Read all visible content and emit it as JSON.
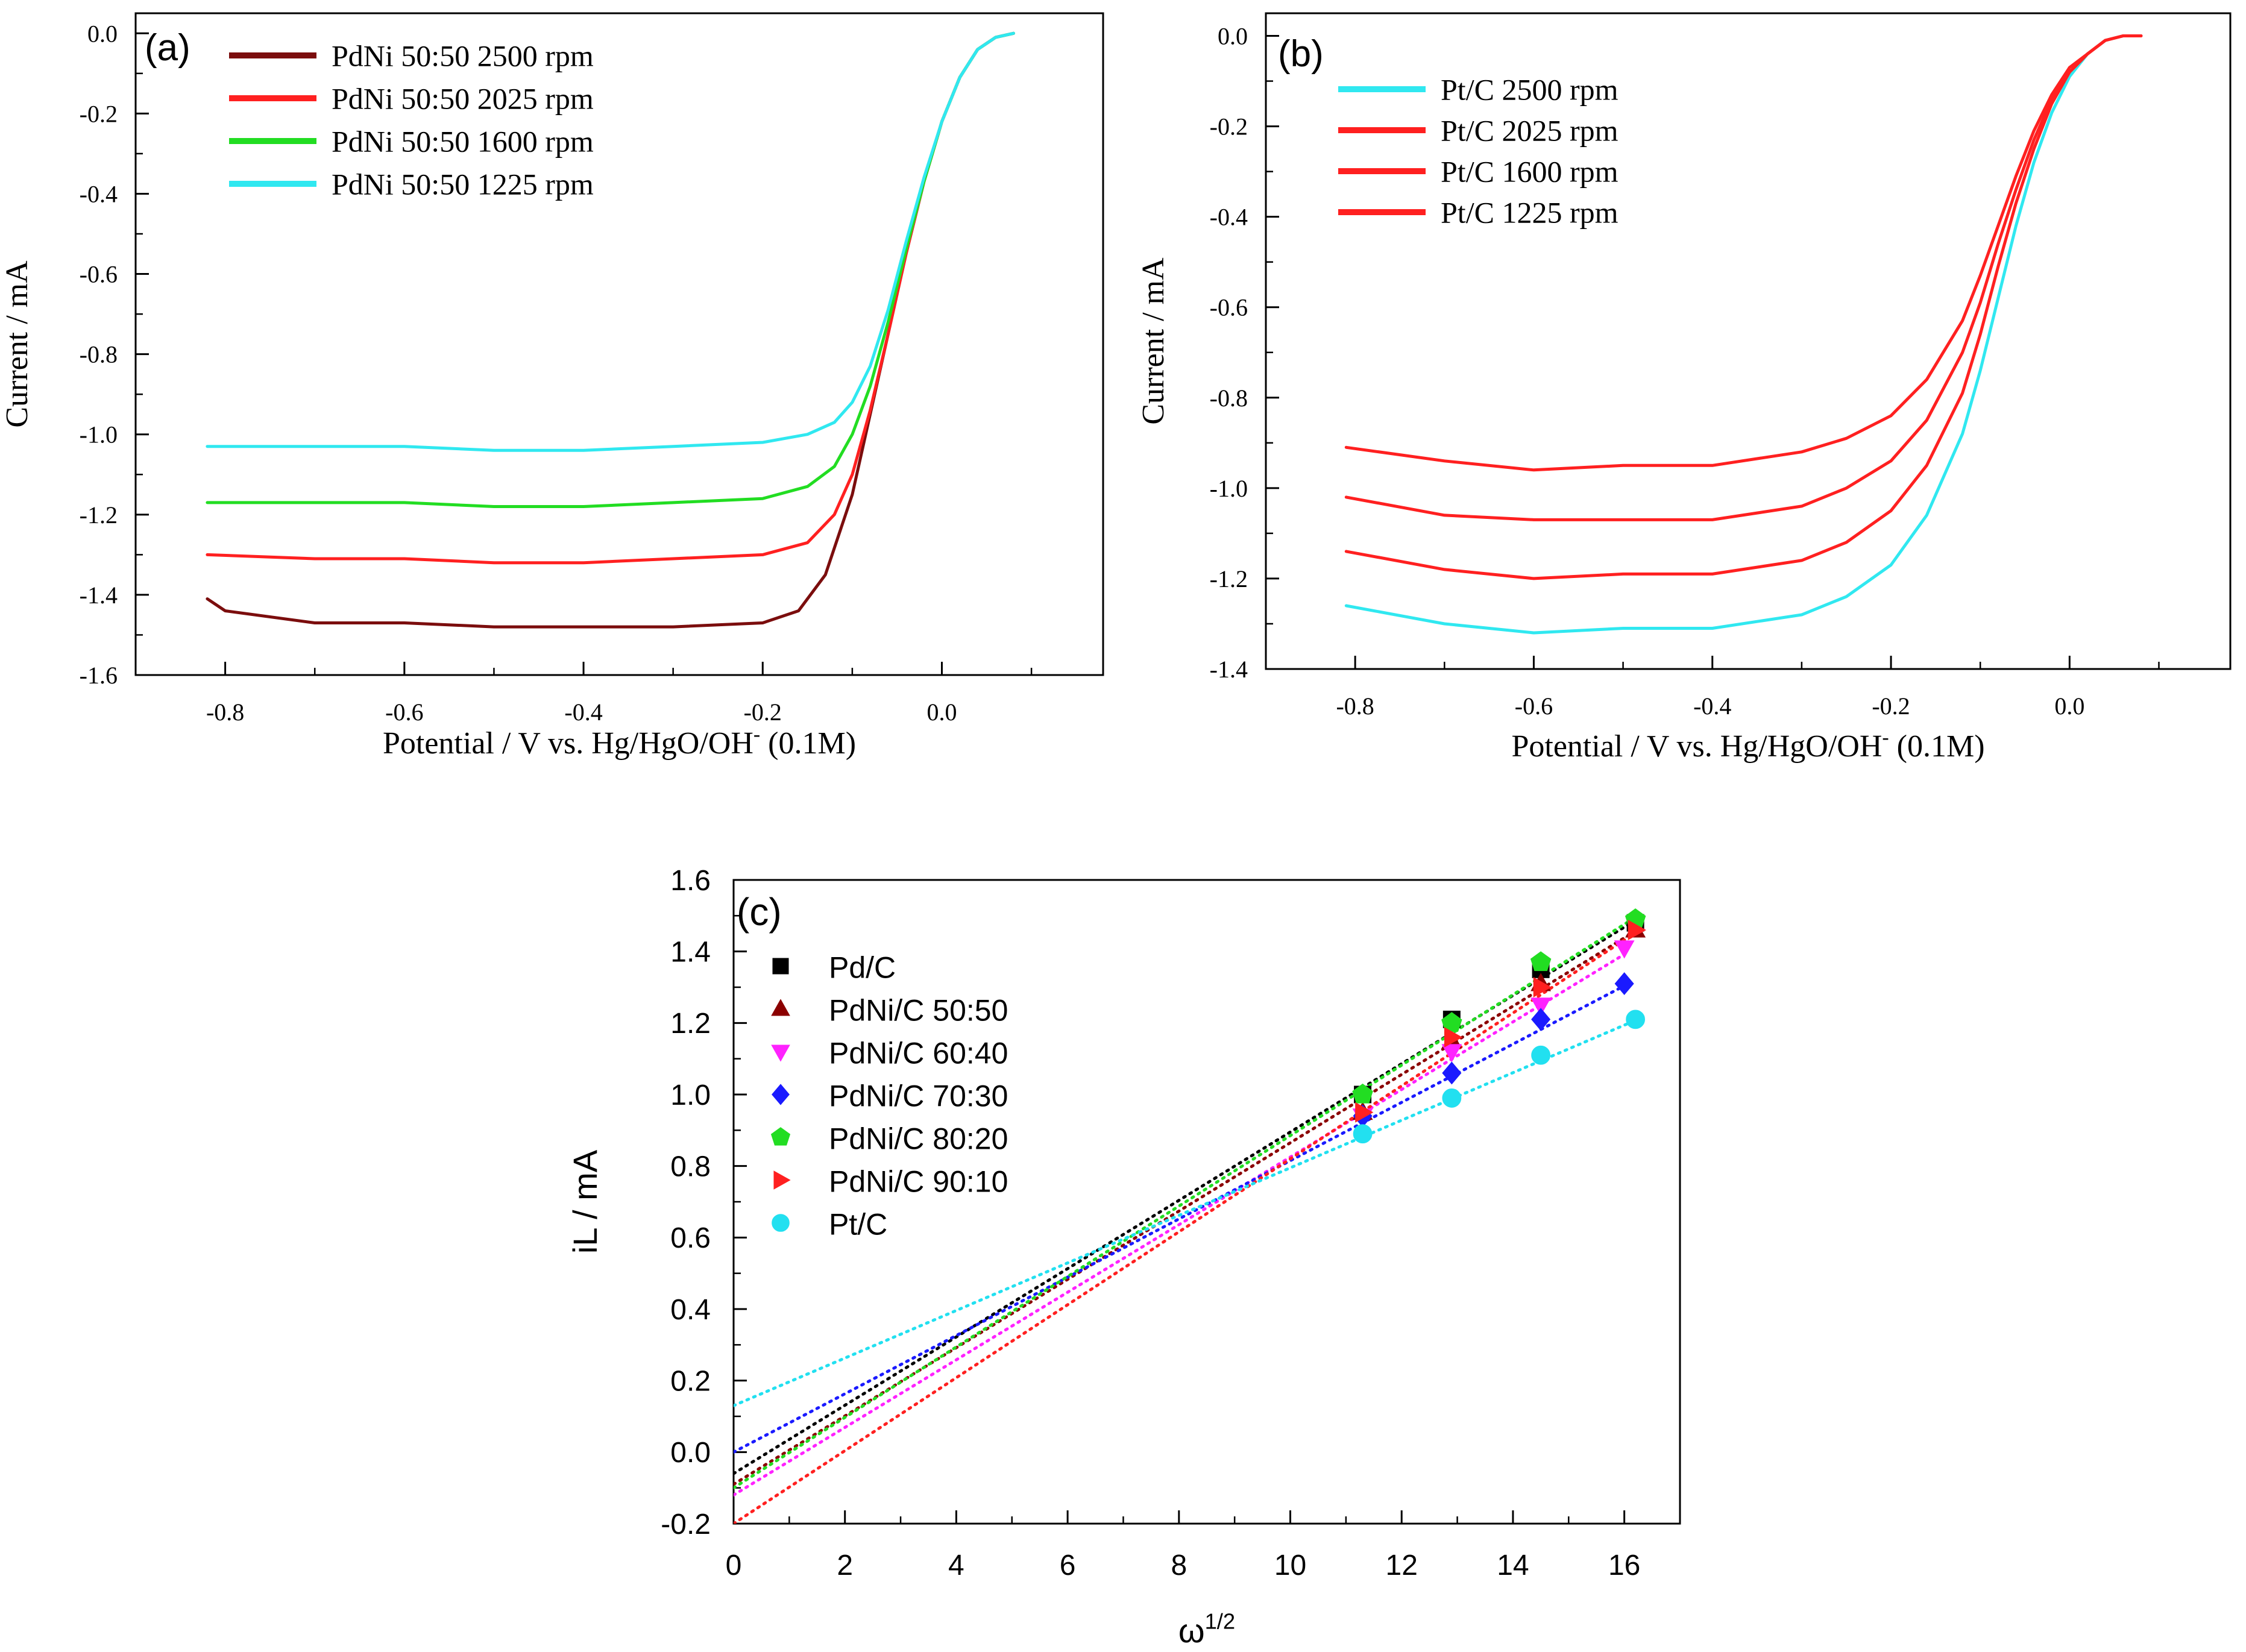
{
  "chart_data": [
    {
      "type": "line",
      "panel_label": "(a)",
      "xlabel_main": "Potential / V vs. Hg/HgO/OH",
      "xlabel_sup": "-",
      "xlabel_tail": " (0.1M)",
      "ylabel": "Current / mA",
      "xlim": [
        -0.9,
        0.18
      ],
      "ylim": [
        -1.6,
        0.05
      ],
      "xticks": [
        -0.8,
        -0.6,
        -0.4,
        -0.2,
        0.0
      ],
      "xtick_labels": [
        "-0.8",
        "-0.6",
        "-0.4",
        "-0.2",
        "0.0"
      ],
      "yticks": [
        0.0,
        -0.2,
        -0.4,
        -0.6,
        -0.8,
        -1.0,
        -1.2,
        -1.4,
        -1.6
      ],
      "ytick_labels": [
        "0.0",
        "-0.2",
        "-0.4",
        "-0.6",
        "-0.8",
        "-1.0",
        "-1.2",
        "-1.4",
        "-1.6"
      ],
      "legend_position": "top-left",
      "series": [
        {
          "name": "PdNi 50:50 2500 rpm",
          "color": "#7b0d0d",
          "x": [
            -0.82,
            -0.8,
            -0.7,
            -0.6,
            -0.5,
            -0.4,
            -0.3,
            -0.2,
            -0.16,
            -0.13,
            -0.1,
            -0.08,
            -0.06,
            -0.04,
            -0.02,
            0.0,
            0.02,
            0.04,
            0.06,
            0.08
          ],
          "y": [
            -1.41,
            -1.44,
            -1.47,
            -1.47,
            -1.48,
            -1.48,
            -1.48,
            -1.47,
            -1.44,
            -1.35,
            -1.15,
            -0.95,
            -0.75,
            -0.55,
            -0.37,
            -0.22,
            -0.11,
            -0.04,
            -0.01,
            0.0
          ]
        },
        {
          "name": "PdNi 50:50 2025 rpm",
          "color": "#ff2020",
          "x": [
            -0.82,
            -0.7,
            -0.6,
            -0.5,
            -0.4,
            -0.3,
            -0.2,
            -0.15,
            -0.12,
            -0.1,
            -0.08,
            -0.06,
            -0.04,
            -0.02,
            0.0,
            0.02,
            0.04,
            0.06,
            0.08
          ],
          "y": [
            -1.3,
            -1.31,
            -1.31,
            -1.32,
            -1.32,
            -1.31,
            -1.3,
            -1.27,
            -1.2,
            -1.1,
            -0.94,
            -0.75,
            -0.55,
            -0.37,
            -0.22,
            -0.11,
            -0.04,
            -0.01,
            0.0
          ]
        },
        {
          "name": "PdNi 50:50 1600 rpm",
          "color": "#22dd22",
          "x": [
            -0.82,
            -0.7,
            -0.6,
            -0.5,
            -0.4,
            -0.3,
            -0.2,
            -0.15,
            -0.12,
            -0.1,
            -0.08,
            -0.06,
            -0.04,
            -0.02,
            0.0,
            0.02,
            0.04,
            0.06,
            0.08
          ],
          "y": [
            -1.17,
            -1.17,
            -1.17,
            -1.18,
            -1.18,
            -1.17,
            -1.16,
            -1.13,
            -1.08,
            -1.0,
            -0.88,
            -0.72,
            -0.54,
            -0.37,
            -0.22,
            -0.11,
            -0.04,
            -0.01,
            0.0
          ]
        },
        {
          "name": "PdNi 50:50 1225 rpm",
          "color": "#30e8f0",
          "x": [
            -0.82,
            -0.7,
            -0.6,
            -0.5,
            -0.4,
            -0.3,
            -0.2,
            -0.15,
            -0.12,
            -0.1,
            -0.08,
            -0.06,
            -0.04,
            -0.02,
            0.0,
            0.02,
            0.04,
            0.06,
            0.08
          ],
          "y": [
            -1.03,
            -1.03,
            -1.03,
            -1.04,
            -1.04,
            -1.03,
            -1.02,
            -1.0,
            -0.97,
            -0.92,
            -0.83,
            -0.69,
            -0.52,
            -0.36,
            -0.22,
            -0.11,
            -0.04,
            -0.01,
            0.0
          ]
        }
      ]
    },
    {
      "type": "line",
      "panel_label": "(b)",
      "xlabel_main": "Potential / V vs. Hg/HgO/OH",
      "xlabel_sup": "-",
      "xlabel_tail": " (0.1M)",
      "ylabel": "Current / mA",
      "xlim": [
        -0.9,
        0.18
      ],
      "ylim": [
        -1.4,
        0.05
      ],
      "xticks": [
        -0.8,
        -0.6,
        -0.4,
        -0.2,
        0.0
      ],
      "xtick_labels": [
        "-0.8",
        "-0.6",
        "-0.4",
        "-0.2",
        "0.0"
      ],
      "yticks": [
        0.0,
        -0.2,
        -0.4,
        -0.6,
        -0.8,
        -1.0,
        -1.2,
        -1.4
      ],
      "ytick_labels": [
        "0.0",
        "-0.2",
        "-0.4",
        "-0.6",
        "-0.8",
        "-1.0",
        "-1.2",
        "-1.4"
      ],
      "legend_position": "top-left",
      "series": [
        {
          "name": "Pt/C 2500 rpm",
          "color": "#30e8f0",
          "x": [
            -0.81,
            -0.7,
            -0.6,
            -0.5,
            -0.4,
            -0.3,
            -0.25,
            -0.2,
            -0.16,
            -0.12,
            -0.1,
            -0.08,
            -0.06,
            -0.04,
            -0.02,
            0.0,
            0.02,
            0.04,
            0.06,
            0.08
          ],
          "y": [
            -1.26,
            -1.3,
            -1.32,
            -1.31,
            -1.31,
            -1.28,
            -1.24,
            -1.17,
            -1.06,
            -0.88,
            -0.74,
            -0.58,
            -0.42,
            -0.28,
            -0.17,
            -0.09,
            -0.04,
            -0.01,
            0.0,
            0.0
          ]
        },
        {
          "name": "Pt/C 2025 rpm",
          "color": "#ff2020",
          "x": [
            -0.81,
            -0.7,
            -0.6,
            -0.5,
            -0.4,
            -0.3,
            -0.25,
            -0.2,
            -0.16,
            -0.12,
            -0.1,
            -0.08,
            -0.06,
            -0.04,
            -0.02,
            0.0,
            0.02,
            0.04,
            0.06,
            0.08
          ],
          "y": [
            -1.14,
            -1.18,
            -1.2,
            -1.19,
            -1.19,
            -1.16,
            -1.12,
            -1.05,
            -0.95,
            -0.79,
            -0.66,
            -0.51,
            -0.37,
            -0.25,
            -0.15,
            -0.08,
            -0.04,
            -0.01,
            0.0,
            0.0
          ]
        },
        {
          "name": "Pt/C 1600 rpm",
          "color": "#ff2020",
          "x": [
            -0.81,
            -0.7,
            -0.6,
            -0.5,
            -0.4,
            -0.3,
            -0.25,
            -0.2,
            -0.16,
            -0.12,
            -0.1,
            -0.08,
            -0.06,
            -0.04,
            -0.02,
            0.0,
            0.02,
            0.04,
            0.06,
            0.08
          ],
          "y": [
            -1.02,
            -1.06,
            -1.07,
            -1.07,
            -1.07,
            -1.04,
            -1.0,
            -0.94,
            -0.85,
            -0.7,
            -0.59,
            -0.46,
            -0.34,
            -0.23,
            -0.14,
            -0.08,
            -0.04,
            -0.01,
            0.0,
            0.0
          ]
        },
        {
          "name": "Pt/C 1225 rpm",
          "color": "#ff2020",
          "x": [
            -0.81,
            -0.7,
            -0.6,
            -0.5,
            -0.4,
            -0.3,
            -0.25,
            -0.2,
            -0.16,
            -0.12,
            -0.1,
            -0.08,
            -0.06,
            -0.04,
            -0.02,
            0.0,
            0.02,
            0.04,
            0.06,
            0.08
          ],
          "y": [
            -0.91,
            -0.94,
            -0.96,
            -0.95,
            -0.95,
            -0.92,
            -0.89,
            -0.84,
            -0.76,
            -0.63,
            -0.53,
            -0.42,
            -0.31,
            -0.21,
            -0.13,
            -0.07,
            -0.04,
            -0.01,
            0.0,
            0.0
          ]
        }
      ]
    },
    {
      "type": "scatter",
      "panel_label": "(c)",
      "xlabel_main": "ω",
      "xlabel_sup": "1/2",
      "ylabel": "iL / mA",
      "xlim": [
        0,
        17
      ],
      "ylim": [
        -0.2,
        1.6
      ],
      "xticks": [
        0,
        2,
        4,
        6,
        8,
        10,
        12,
        14,
        16
      ],
      "xtick_labels": [
        "0",
        "2",
        "4",
        "6",
        "8",
        "10",
        "12",
        "14",
        "16"
      ],
      "yticks": [
        -0.2,
        0.0,
        0.2,
        0.4,
        0.6,
        0.8,
        1.0,
        1.2,
        1.4,
        1.6
      ],
      "ytick_labels": [
        "-0.2",
        "0.0",
        "0.2",
        "0.4",
        "0.6",
        "0.8",
        "1.0",
        "1.2",
        "1.4",
        "1.6"
      ],
      "legend_position": "top-left",
      "series": [
        {
          "name": "Pd/C",
          "marker": "square",
          "color": "#000000",
          "x": [
            11.3,
            12.9,
            14.5,
            16.2
          ],
          "y": [
            1.0,
            1.21,
            1.35,
            1.48
          ],
          "fit": {
            "intercept": -0.06,
            "slope": 0.0955
          }
        },
        {
          "name": "PdNi/C 50:50",
          "marker": "triangle-up",
          "color": "#8b0000",
          "x": [
            11.3,
            12.9,
            14.5,
            16.2
          ],
          "y": [
            0.95,
            1.15,
            1.31,
            1.46
          ],
          "fit": {
            "intercept": -0.09,
            "slope": 0.0955
          }
        },
        {
          "name": "PdNi/C 60:40",
          "marker": "triangle-down",
          "color": "#ff22ff",
          "x": [
            11.3,
            12.9,
            14.5,
            16.0
          ],
          "y": [
            0.94,
            1.12,
            1.25,
            1.41
          ],
          "fit": {
            "intercept": -0.12,
            "slope": 0.0945
          }
        },
        {
          "name": "PdNi/C 70:30",
          "marker": "diamond",
          "color": "#1a1aff",
          "x": [
            11.3,
            12.9,
            14.5,
            16.0
          ],
          "y": [
            0.94,
            1.06,
            1.21,
            1.31
          ],
          "fit": {
            "intercept": 0.0,
            "slope": 0.0815
          }
        },
        {
          "name": "PdNi/C 80:20",
          "marker": "pentagon",
          "color": "#22dd22",
          "x": [
            11.3,
            12.9,
            14.5,
            16.2
          ],
          "y": [
            1.0,
            1.2,
            1.37,
            1.49
          ],
          "fit": {
            "intercept": -0.1,
            "slope": 0.0985
          }
        },
        {
          "name": "PdNi/C 90:10",
          "marker": "triangle-right",
          "color": "#ff2020",
          "x": [
            11.3,
            12.9,
            14.5,
            16.2
          ],
          "y": [
            0.95,
            1.16,
            1.3,
            1.46
          ],
          "fit": {
            "intercept": -0.2,
            "slope": 0.102
          }
        },
        {
          "name": "Pt/C",
          "marker": "circle",
          "color": "#22e0f0",
          "x": [
            11.3,
            12.9,
            14.5,
            16.2
          ],
          "y": [
            0.89,
            0.99,
            1.11,
            1.21
          ],
          "fit": {
            "intercept": 0.13,
            "slope": 0.0665
          }
        }
      ]
    }
  ]
}
